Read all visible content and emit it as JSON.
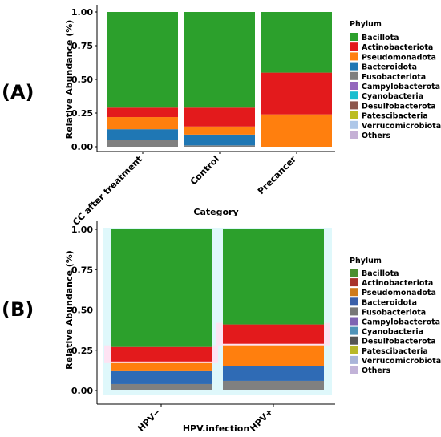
{
  "panels": [
    {
      "label": "(A)",
      "chart_data": {
        "type": "bar",
        "stacked": true,
        "categories": [
          "CC after treatment",
          "Control",
          "Precancer"
        ],
        "xlabel": "Category",
        "ylabel": "Relative Abundance (%)",
        "ylim": [
          0,
          1
        ],
        "yticks": [
          "0.00",
          "0.25",
          "0.50",
          "0.75",
          "1.00"
        ],
        "grid": false,
        "legend_title": "Phylum",
        "legend_position": "right",
        "series": [
          {
            "name": "Fusobacteriota",
            "color": "#808080",
            "values": [
              0.05,
              0.01,
              0.0
            ]
          },
          {
            "name": "Bacteroidota",
            "color": "#1f77b4",
            "values": [
              0.08,
              0.08,
              0.0
            ]
          },
          {
            "name": "Pseudomonadota",
            "color": "#ff7f0e",
            "values": [
              0.09,
              0.06,
              0.24
            ]
          },
          {
            "name": "Actinobacteriota",
            "color": "#e31a1c",
            "values": [
              0.07,
              0.14,
              0.31
            ]
          },
          {
            "name": "Bacillota",
            "color": "#2ca02c",
            "values": [
              0.71,
              0.71,
              0.45
            ]
          }
        ],
        "legend": [
          {
            "name": "Bacillota",
            "color": "#2ca02c"
          },
          {
            "name": "Actinobacteriota",
            "color": "#e31a1c"
          },
          {
            "name": "Pseudomonadota",
            "color": "#ff7f0e"
          },
          {
            "name": "Bacteroidota",
            "color": "#1f77b4"
          },
          {
            "name": "Fusobacteriota",
            "color": "#7f7f7f"
          },
          {
            "name": "Campylobacterota",
            "color": "#9467bd"
          },
          {
            "name": "Cyanobacteria",
            "color": "#17becf"
          },
          {
            "name": "Desulfobacterota",
            "color": "#8c564b"
          },
          {
            "name": "Patescibacteria",
            "color": "#bcbd22"
          },
          {
            "name": "Verrucomicrobiota",
            "color": "#aec7e8"
          },
          {
            "name": "Others",
            "color": "#c5b0d5"
          }
        ]
      }
    },
    {
      "label": "(B)",
      "chart_data": {
        "type": "bar",
        "stacked": true,
        "categories": [
          "HPV−",
          "HPV+"
        ],
        "xlabel": "HPV.infection",
        "ylabel": "Relative Abundance (%)",
        "ylim": [
          0,
          1
        ],
        "yticks": [
          "0.00",
          "0.25",
          "0.50",
          "0.75",
          "1.00"
        ],
        "grid": false,
        "legend_title": "Phylum",
        "legend_position": "right",
        "series": [
          {
            "name": "Fusobacteriota",
            "color": "#808080",
            "values": [
              0.04,
              0.06
            ]
          },
          {
            "name": "Bacteroidota",
            "color": "#2f6bb5",
            "values": [
              0.08,
              0.09
            ]
          },
          {
            "name": "Pseudomonadota",
            "color": "#ff7f0e",
            "values": [
              0.06,
              0.14
            ]
          },
          {
            "name": "Actinobacteriota",
            "color": "#e31a1c",
            "values": [
              0.09,
              0.12
            ]
          },
          {
            "name": "Bacillota",
            "color": "#2ca02c",
            "values": [
              0.73,
              0.59
            ]
          }
        ],
        "legend": [
          {
            "name": "Bacillota",
            "color": "#4a8f2f"
          },
          {
            "name": "Actinobacteriota",
            "color": "#a8322a"
          },
          {
            "name": "Pseudomonadota",
            "color": "#cf7a1a"
          },
          {
            "name": "Bacteroidota",
            "color": "#3a5fa8"
          },
          {
            "name": "Fusobacteriota",
            "color": "#777777"
          },
          {
            "name": "Campylobacterota",
            "color": "#7e63b2"
          },
          {
            "name": "Cyanobacteria",
            "color": "#4f93b8"
          },
          {
            "name": "Desulfobacterota",
            "color": "#555555"
          },
          {
            "name": "Patescibacteria",
            "color": "#b8b82a"
          },
          {
            "name": "Verrucomicrobiota",
            "color": "#a9b4d9"
          },
          {
            "name": "Others",
            "color": "#c2b3d8"
          }
        ]
      }
    }
  ]
}
